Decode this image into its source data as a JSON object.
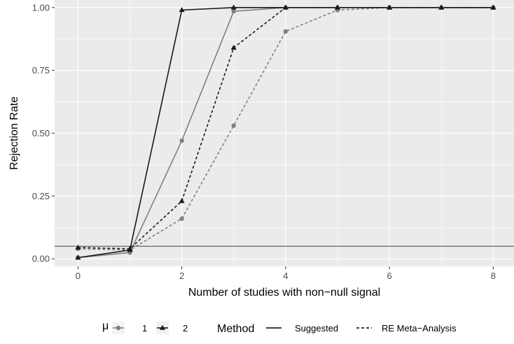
{
  "chart_data": {
    "type": "line",
    "xlabel": "Number of studies with non−null signal",
    "ylabel": "Rejection Rate",
    "xlim": [
      -0.45,
      8.4
    ],
    "ylim": [
      -0.03,
      1.03
    ],
    "x_ticks": [
      0,
      2,
      4,
      6,
      8
    ],
    "x_tick_labels": [
      "0",
      "2",
      "4",
      "6",
      "8"
    ],
    "y_ticks": [
      0.0,
      0.25,
      0.5,
      0.75,
      1.0
    ],
    "y_tick_labels": [
      "0.00",
      "0.25",
      "0.50",
      "0.75",
      "1.00"
    ],
    "grid": true,
    "reference_line": {
      "y": 0.05,
      "color": "#666666"
    },
    "legend_position": "bottom",
    "legend": {
      "mu_title": "μ",
      "mu_entries": [
        {
          "label": "1",
          "marker": "circle",
          "color": "#808080"
        },
        {
          "label": "2",
          "marker": "triangle",
          "color": "#1a1a1a"
        }
      ],
      "method_title": "Method",
      "method_entries": [
        {
          "label": "Suggested",
          "linestyle": "solid"
        },
        {
          "label": "RE Meta−Analysis",
          "linestyle": "dashed"
        }
      ]
    },
    "series": [
      {
        "mu": "1",
        "method": "Suggested",
        "color": "#808080",
        "marker": "circle",
        "linestyle": "solid",
        "x": [
          0,
          1,
          2,
          3,
          4,
          5,
          6,
          7,
          8
        ],
        "values": [
          0.005,
          0.025,
          0.47,
          0.985,
          1.0,
          1.0,
          1.0,
          1.0,
          1.0
        ]
      },
      {
        "mu": "1",
        "method": "RE Meta−Analysis",
        "color": "#808080",
        "marker": "circle",
        "linestyle": "dashed",
        "x": [
          0,
          1,
          2,
          3,
          4,
          5,
          6,
          7,
          8
        ],
        "values": [
          0.04,
          0.035,
          0.16,
          0.53,
          0.905,
          0.99,
          1.0,
          1.0,
          1.0
        ]
      },
      {
        "mu": "2",
        "method": "Suggested",
        "color": "#1a1a1a",
        "marker": "triangle",
        "linestyle": "solid",
        "x": [
          0,
          1,
          2,
          3,
          4,
          5,
          6,
          7,
          8
        ],
        "values": [
          0.005,
          0.035,
          0.99,
          1.0,
          1.0,
          1.0,
          1.0,
          1.0,
          1.0
        ]
      },
      {
        "mu": "2",
        "method": "RE Meta−Analysis",
        "color": "#1a1a1a",
        "marker": "triangle",
        "linestyle": "dashed",
        "x": [
          0,
          1,
          2,
          3,
          4,
          5,
          6,
          7,
          8
        ],
        "values": [
          0.045,
          0.04,
          0.23,
          0.84,
          1.0,
          1.0,
          1.0,
          1.0,
          1.0
        ]
      }
    ]
  }
}
